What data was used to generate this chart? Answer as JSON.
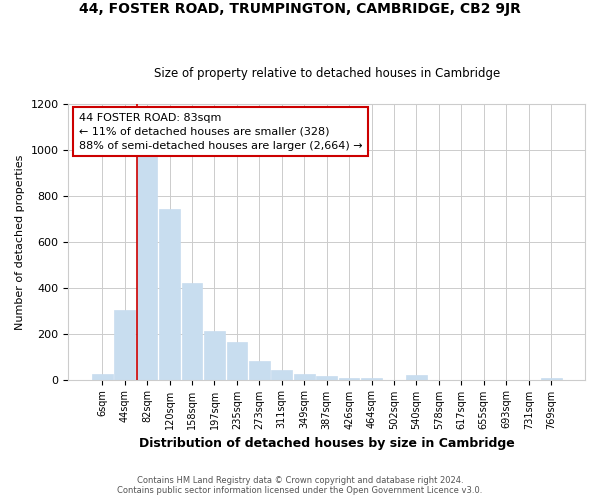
{
  "title": "44, FOSTER ROAD, TRUMPINGTON, CAMBRIDGE, CB2 9JR",
  "subtitle": "Size of property relative to detached houses in Cambridge",
  "xlabel": "Distribution of detached houses by size in Cambridge",
  "ylabel": "Number of detached properties",
  "categories": [
    "6sqm",
    "44sqm",
    "82sqm",
    "120sqm",
    "158sqm",
    "197sqm",
    "235sqm",
    "273sqm",
    "311sqm",
    "349sqm",
    "387sqm",
    "426sqm",
    "464sqm",
    "502sqm",
    "540sqm",
    "578sqm",
    "617sqm",
    "655sqm",
    "693sqm",
    "731sqm",
    "769sqm"
  ],
  "values": [
    25,
    305,
    975,
    745,
    420,
    210,
    165,
    80,
    40,
    25,
    15,
    5,
    5,
    0,
    20,
    0,
    0,
    0,
    0,
    0,
    8
  ],
  "bar_color": "#c8ddef",
  "highlight_bar_index": 2,
  "highlight_line_color": "#cc0000",
  "annotation_text": "44 FOSTER ROAD: 83sqm\n← 11% of detached houses are smaller (328)\n88% of semi-detached houses are larger (2,664) →",
  "annotation_box_edgecolor": "#cc0000",
  "ylim": [
    0,
    1200
  ],
  "yticks": [
    0,
    200,
    400,
    600,
    800,
    1000,
    1200
  ],
  "footer_line1": "Contains HM Land Registry data © Crown copyright and database right 2024.",
  "footer_line2": "Contains public sector information licensed under the Open Government Licence v3.0.",
  "bg_color": "#ffffff",
  "grid_color": "#cccccc"
}
